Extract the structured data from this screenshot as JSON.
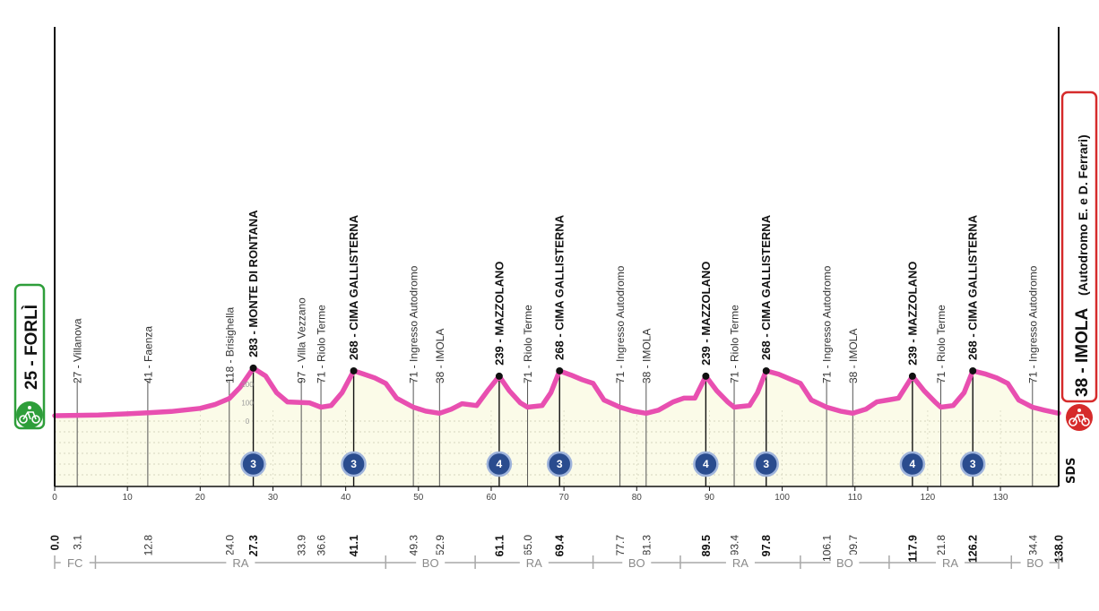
{
  "chart_data": {
    "type": "area",
    "title": "",
    "xlabel": "",
    "ylabel": "",
    "xlim": [
      0,
      138
    ],
    "ylim": [
      0,
      200
    ],
    "x_ticks": [
      0,
      10,
      20,
      30,
      40,
      50,
      60,
      70,
      80,
      90,
      100,
      110,
      120,
      130
    ],
    "y_ticks": [
      0,
      100,
      200
    ],
    "grid": true,
    "line_color": "#e84fb0",
    "fill_color": "#fbfbe8",
    "profile": [
      [
        0,
        25
      ],
      [
        3.1,
        27
      ],
      [
        6,
        29
      ],
      [
        10,
        35
      ],
      [
        12.8,
        41
      ],
      [
        16,
        48
      ],
      [
        20,
        65
      ],
      [
        22,
        85
      ],
      [
        24,
        118
      ],
      [
        25.5,
        180
      ],
      [
        27.3,
        283
      ],
      [
        29,
        240
      ],
      [
        30.5,
        150
      ],
      [
        32,
        100
      ],
      [
        33.9,
        97
      ],
      [
        35,
        95
      ],
      [
        36.6,
        71
      ],
      [
        38,
        80
      ],
      [
        39.5,
        150
      ],
      [
        41.1,
        268
      ],
      [
        42.5,
        250
      ],
      [
        44,
        230
      ],
      [
        45.5,
        200
      ],
      [
        47,
        120
      ],
      [
        49.3,
        71
      ],
      [
        51,
        50
      ],
      [
        52.9,
        38
      ],
      [
        54.5,
        60
      ],
      [
        56,
        90
      ],
      [
        58,
        80
      ],
      [
        59.5,
        160
      ],
      [
        61.1,
        239
      ],
      [
        62.5,
        160
      ],
      [
        64,
        95
      ],
      [
        65,
        71
      ],
      [
        67,
        80
      ],
      [
        68.2,
        150
      ],
      [
        69.4,
        268
      ],
      [
        71,
        245
      ],
      [
        72.5,
        220
      ],
      [
        74,
        200
      ],
      [
        75.5,
        110
      ],
      [
        77.7,
        71
      ],
      [
        79.5,
        50
      ],
      [
        81.3,
        38
      ],
      [
        83,
        55
      ],
      [
        85,
        100
      ],
      [
        86.5,
        120
      ],
      [
        88,
        120
      ],
      [
        89.5,
        239
      ],
      [
        91,
        160
      ],
      [
        92.5,
        100
      ],
      [
        93.4,
        71
      ],
      [
        95.5,
        80
      ],
      [
        96.6,
        150
      ],
      [
        97.8,
        268
      ],
      [
        99.5,
        250
      ],
      [
        101,
        225
      ],
      [
        102.5,
        200
      ],
      [
        104,
        110
      ],
      [
        106.1,
        71
      ],
      [
        108,
        50
      ],
      [
        109.7,
        38
      ],
      [
        111.5,
        60
      ],
      [
        113,
        100
      ],
      [
        114.5,
        110
      ],
      [
        116,
        120
      ],
      [
        117.9,
        239
      ],
      [
        119.5,
        160
      ],
      [
        121,
        100
      ],
      [
        121.8,
        71
      ],
      [
        123.5,
        80
      ],
      [
        125,
        150
      ],
      [
        126.2,
        268
      ],
      [
        128,
        250
      ],
      [
        129.5,
        230
      ],
      [
        131,
        200
      ],
      [
        132.5,
        110
      ],
      [
        134.4,
        71
      ],
      [
        136,
        55
      ],
      [
        138,
        38
      ]
    ],
    "points": [
      {
        "km": "0.0",
        "x": 0,
        "alt": 25,
        "name": "",
        "bold": true
      },
      {
        "km": "3.1",
        "x": 3.1,
        "alt": 27,
        "name": "27 - Villanova",
        "bold": false
      },
      {
        "km": "12.8",
        "x": 12.8,
        "alt": 41,
        "name": "41 - Faenza",
        "bold": false
      },
      {
        "km": "24.0",
        "x": 24.0,
        "alt": 118,
        "name": "118 - Brisighella",
        "bold": false
      },
      {
        "km": "27.3",
        "x": 27.3,
        "alt": 283,
        "name": "283 - MONTE DI RONTANA",
        "bold": true,
        "gpm": "3"
      },
      {
        "km": "33.9",
        "x": 33.9,
        "alt": 97,
        "name": "97 - Villa Vezzano",
        "bold": false
      },
      {
        "km": "36.6",
        "x": 36.6,
        "alt": 71,
        "name": "71 - Riolo Terme",
        "bold": false
      },
      {
        "km": "41.1",
        "x": 41.1,
        "alt": 268,
        "name": "268 - CIMA GALLISTERNA",
        "bold": true,
        "gpm": "3"
      },
      {
        "km": "49.3",
        "x": 49.3,
        "alt": 71,
        "name": "71 - Ingresso Autodromo",
        "bold": false
      },
      {
        "km": "52.9",
        "x": 52.9,
        "alt": 38,
        "name": "38 - IMOLA",
        "bold": false
      },
      {
        "km": "61.1",
        "x": 61.1,
        "alt": 239,
        "name": "239 - MAZZOLANO",
        "bold": true,
        "gpm": "4"
      },
      {
        "km": "65.0",
        "x": 65.0,
        "alt": 71,
        "name": "71 - Riolo Terme",
        "bold": false
      },
      {
        "km": "69.4",
        "x": 69.4,
        "alt": 268,
        "name": "268 - CIMA GALLISTERNA",
        "bold": true,
        "gpm": "3"
      },
      {
        "km": "77.7",
        "x": 77.7,
        "alt": 71,
        "name": "71 - Ingresso Autodromo",
        "bold": false
      },
      {
        "km": "81.3",
        "x": 81.3,
        "alt": 38,
        "name": "38 - IMOLA",
        "bold": false
      },
      {
        "km": "89.5",
        "x": 89.5,
        "alt": 239,
        "name": "239 - MAZZOLANO",
        "bold": true,
        "gpm": "4"
      },
      {
        "km": "93.4",
        "x": 93.4,
        "alt": 71,
        "name": "71 - Riolo Terme",
        "bold": false
      },
      {
        "km": "97.8",
        "x": 97.8,
        "alt": 268,
        "name": "268 - CIMA GALLISTERNA",
        "bold": true,
        "gpm": "3"
      },
      {
        "km": "106.1",
        "x": 106.1,
        "alt": 71,
        "name": "71 - Ingresso Autodromo",
        "bold": false
      },
      {
        "km": "109.7",
        "x": 109.7,
        "alt": 38,
        "name": "38 - IMOLA",
        "bold": false
      },
      {
        "km": "117.9",
        "x": 117.9,
        "alt": 239,
        "name": "239 - MAZZOLANO",
        "bold": true,
        "gpm": "4"
      },
      {
        "km": "121.8",
        "x": 121.8,
        "alt": 71,
        "name": "71 - Riolo Terme",
        "bold": false
      },
      {
        "km": "126.2",
        "x": 126.2,
        "alt": 268,
        "name": "268 - CIMA GALLISTERNA",
        "bold": true,
        "gpm": "3"
      },
      {
        "km": "134.4",
        "x": 134.4,
        "alt": 71,
        "name": "71 - Ingresso Autodromo",
        "bold": false
      },
      {
        "km": "138.0",
        "x": 138,
        "alt": 38,
        "name": "",
        "bold": true
      }
    ],
    "provinces": [
      {
        "label": "FC",
        "from": 0,
        "to": 5.6
      },
      {
        "label": "RA",
        "from": 5.6,
        "to": 45.5
      },
      {
        "label": "BO",
        "from": 45.5,
        "to": 57.8
      },
      {
        "label": "RA",
        "from": 57.8,
        "to": 74
      },
      {
        "label": "BO",
        "from": 74,
        "to": 86
      },
      {
        "label": "RA",
        "from": 86,
        "to": 102.5
      },
      {
        "label": "BO",
        "from": 102.5,
        "to": 114.7
      },
      {
        "label": "RA",
        "from": 114.7,
        "to": 131.5
      },
      {
        "label": "BO",
        "from": 131.5,
        "to": 138
      }
    ]
  },
  "start": {
    "label": "25 - FORLÌ",
    "color": "#2e9e3a"
  },
  "finish": {
    "label": "38 - IMOLA",
    "sublabel": "(Autodromo E. e D. Ferrari)",
    "color": "#d62b2b"
  },
  "logo": "SDS",
  "icons": {
    "start": "cyclist-icon",
    "finish": "cyclist-icon"
  }
}
